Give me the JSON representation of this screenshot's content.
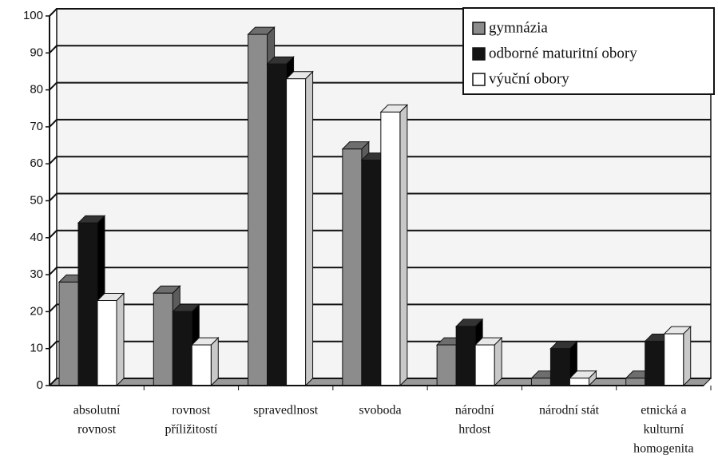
{
  "chart_data": {
    "type": "bar3d",
    "categories": [
      [
        "absolutní",
        "rovnost"
      ],
      [
        "rovnost",
        "příližitostí"
      ],
      [
        "spravedlnost"
      ],
      [
        "svoboda"
      ],
      [
        "národní",
        "hrdost"
      ],
      [
        "národní stát"
      ],
      [
        "etnická a",
        "kulturní",
        "homogenita"
      ]
    ],
    "series": [
      {
        "name": "gymnázia",
        "color": "#8c8c8c",
        "values": [
          28,
          25,
          95,
          64,
          11,
          2,
          2
        ]
      },
      {
        "name": "odborné maturitní obory",
        "color": "#141414",
        "values": [
          44,
          20,
          87,
          61,
          16,
          10,
          12
        ]
      },
      {
        "name": "výuční obory",
        "color": "#ffffff",
        "values": [
          23,
          11,
          83,
          74,
          11,
          2,
          14
        ]
      }
    ],
    "ylim": [
      0,
      100
    ],
    "yticks": [
      0,
      10,
      20,
      30,
      40,
      50,
      60,
      70,
      80,
      90,
      100
    ],
    "grid": true,
    "legend": "top-right"
  }
}
